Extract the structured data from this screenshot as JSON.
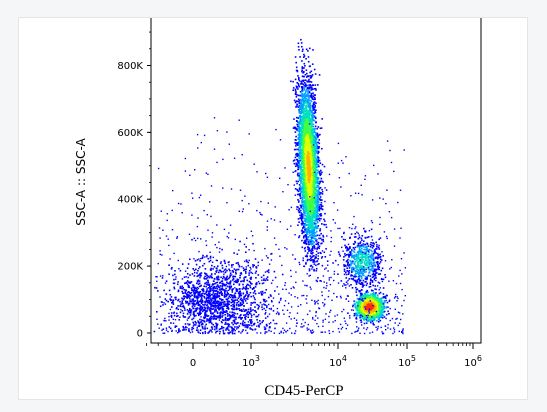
{
  "chart_data": {
    "type": "scatter",
    "subtype": "flow-cytometry-density-dot-plot",
    "xlabel": "CD45-PerCP",
    "ylabel": "SSC-A :: SSC-A",
    "x_scale": "biexponential",
    "y_scale": "linear",
    "y_ticks": [
      {
        "value": 0,
        "label": "0"
      },
      {
        "value": 200000,
        "label": "200K"
      },
      {
        "value": 400000,
        "label": "400K"
      },
      {
        "value": 600000,
        "label": "600K"
      },
      {
        "value": 800000,
        "label": "800K"
      }
    ],
    "x_ticks": [
      {
        "value": 0,
        "label": "0"
      },
      {
        "value": 1000,
        "label": "10^3"
      },
      {
        "value": 10000,
        "label": "10^4"
      },
      {
        "value": 100000,
        "label": "10^5"
      },
      {
        "value": 1000000,
        "label": "10^6"
      }
    ],
    "ylim": [
      -30000,
      960000
    ],
    "density_colors": [
      "#0000ff",
      "#00a0ff",
      "#00e0c0",
      "#40ff40",
      "#e0ff00",
      "#ffb000",
      "#ff3000"
    ],
    "populations": [
      {
        "center_cd45": 4500,
        "center_ssc": 500000,
        "spread_ssc": 170000,
        "events": 3800
      },
      {
        "center_cd45": 28000,
        "center_ssc": 80000,
        "spread_ssc": 25000,
        "events": 1500
      },
      {
        "center_cd45": 22000,
        "center_ssc": 215000,
        "spread_ssc": 55000,
        "events": 600
      },
      {
        "center_cd45": 300,
        "center_ssc": 100000,
        "spread_ssc": 80000,
        "events": 1300
      }
    ]
  }
}
